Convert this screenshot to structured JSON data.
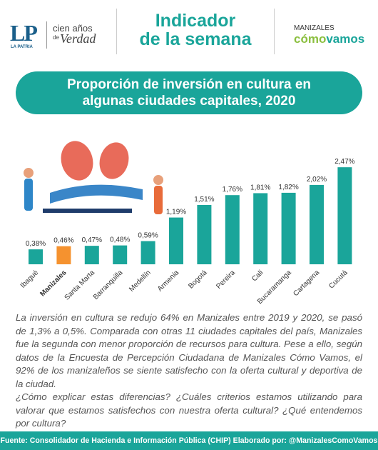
{
  "header": {
    "logo": "LP",
    "logo_sub": "LA PATRIA",
    "tagline_1": "cien años",
    "tagline_2": "de",
    "tagline_3": "Verdad",
    "title_1": "Indicador",
    "title_2": "de la semana",
    "partner_1": "MANIZALES",
    "partner_2a": "cómo",
    "partner_2b": "vamos"
  },
  "chart_data": {
    "type": "bar",
    "title": "Proporción de inversión en cultura en algunas ciudades capitales, 2020",
    "categories": [
      "Ibagué",
      "Manizales",
      "Santa Marta",
      "Barranquilla",
      "Medellín",
      "Armenia",
      "Bogotá",
      "Pereira",
      "Cali",
      "Bucaramanga",
      "Cartagena",
      "Cucutá"
    ],
    "values": [
      0.38,
      0.46,
      0.47,
      0.48,
      0.59,
      1.19,
      1.51,
      1.76,
      1.81,
      1.82,
      2.02,
      2.47
    ],
    "value_labels": [
      "0,38%",
      "0,46%",
      "0,47%",
      "0,48%",
      "0,59%",
      "1,19%",
      "1,51%",
      "1,76%",
      "1,81%",
      "1,82%",
      "2,02%",
      "2,47%"
    ],
    "colors": [
      "#1aa59a",
      "#f5922f",
      "#1aa59a",
      "#1aa59a",
      "#1aa59a",
      "#1aa59a",
      "#1aa59a",
      "#1aa59a",
      "#1aa59a",
      "#1aa59a",
      "#1aa59a",
      "#1aa59a"
    ]
  },
  "body": {
    "paragraphs": [
      "La inversión en cultura se redujo 64% en Manizales entre 2019 y 2020, se pasó de 1,3% a 0,5%. Comparada con otras 11 ciudades capitales del país, Manizales fue la segunda con menor proporción de recursos para cultura. Pese a ello, según datos de la Encuesta de Percepción Ciudadana de Manizales Cómo Vamos, el 92% de los manizaleños se siente satisfecho con la oferta cultural y deportiva de la ciudad.",
      "¿Cómo explicar estas diferencias? ¿Cuáles criterios estamos utilizando para valorar que estamos satisfechos con nuestra oferta cultural? ¿Qué entendemos por cultura?"
    ]
  },
  "footer": "Fuente: Consolidador de Hacienda e Información Pública (CHIP) Elaborado por: @ManizalesComoVamos"
}
